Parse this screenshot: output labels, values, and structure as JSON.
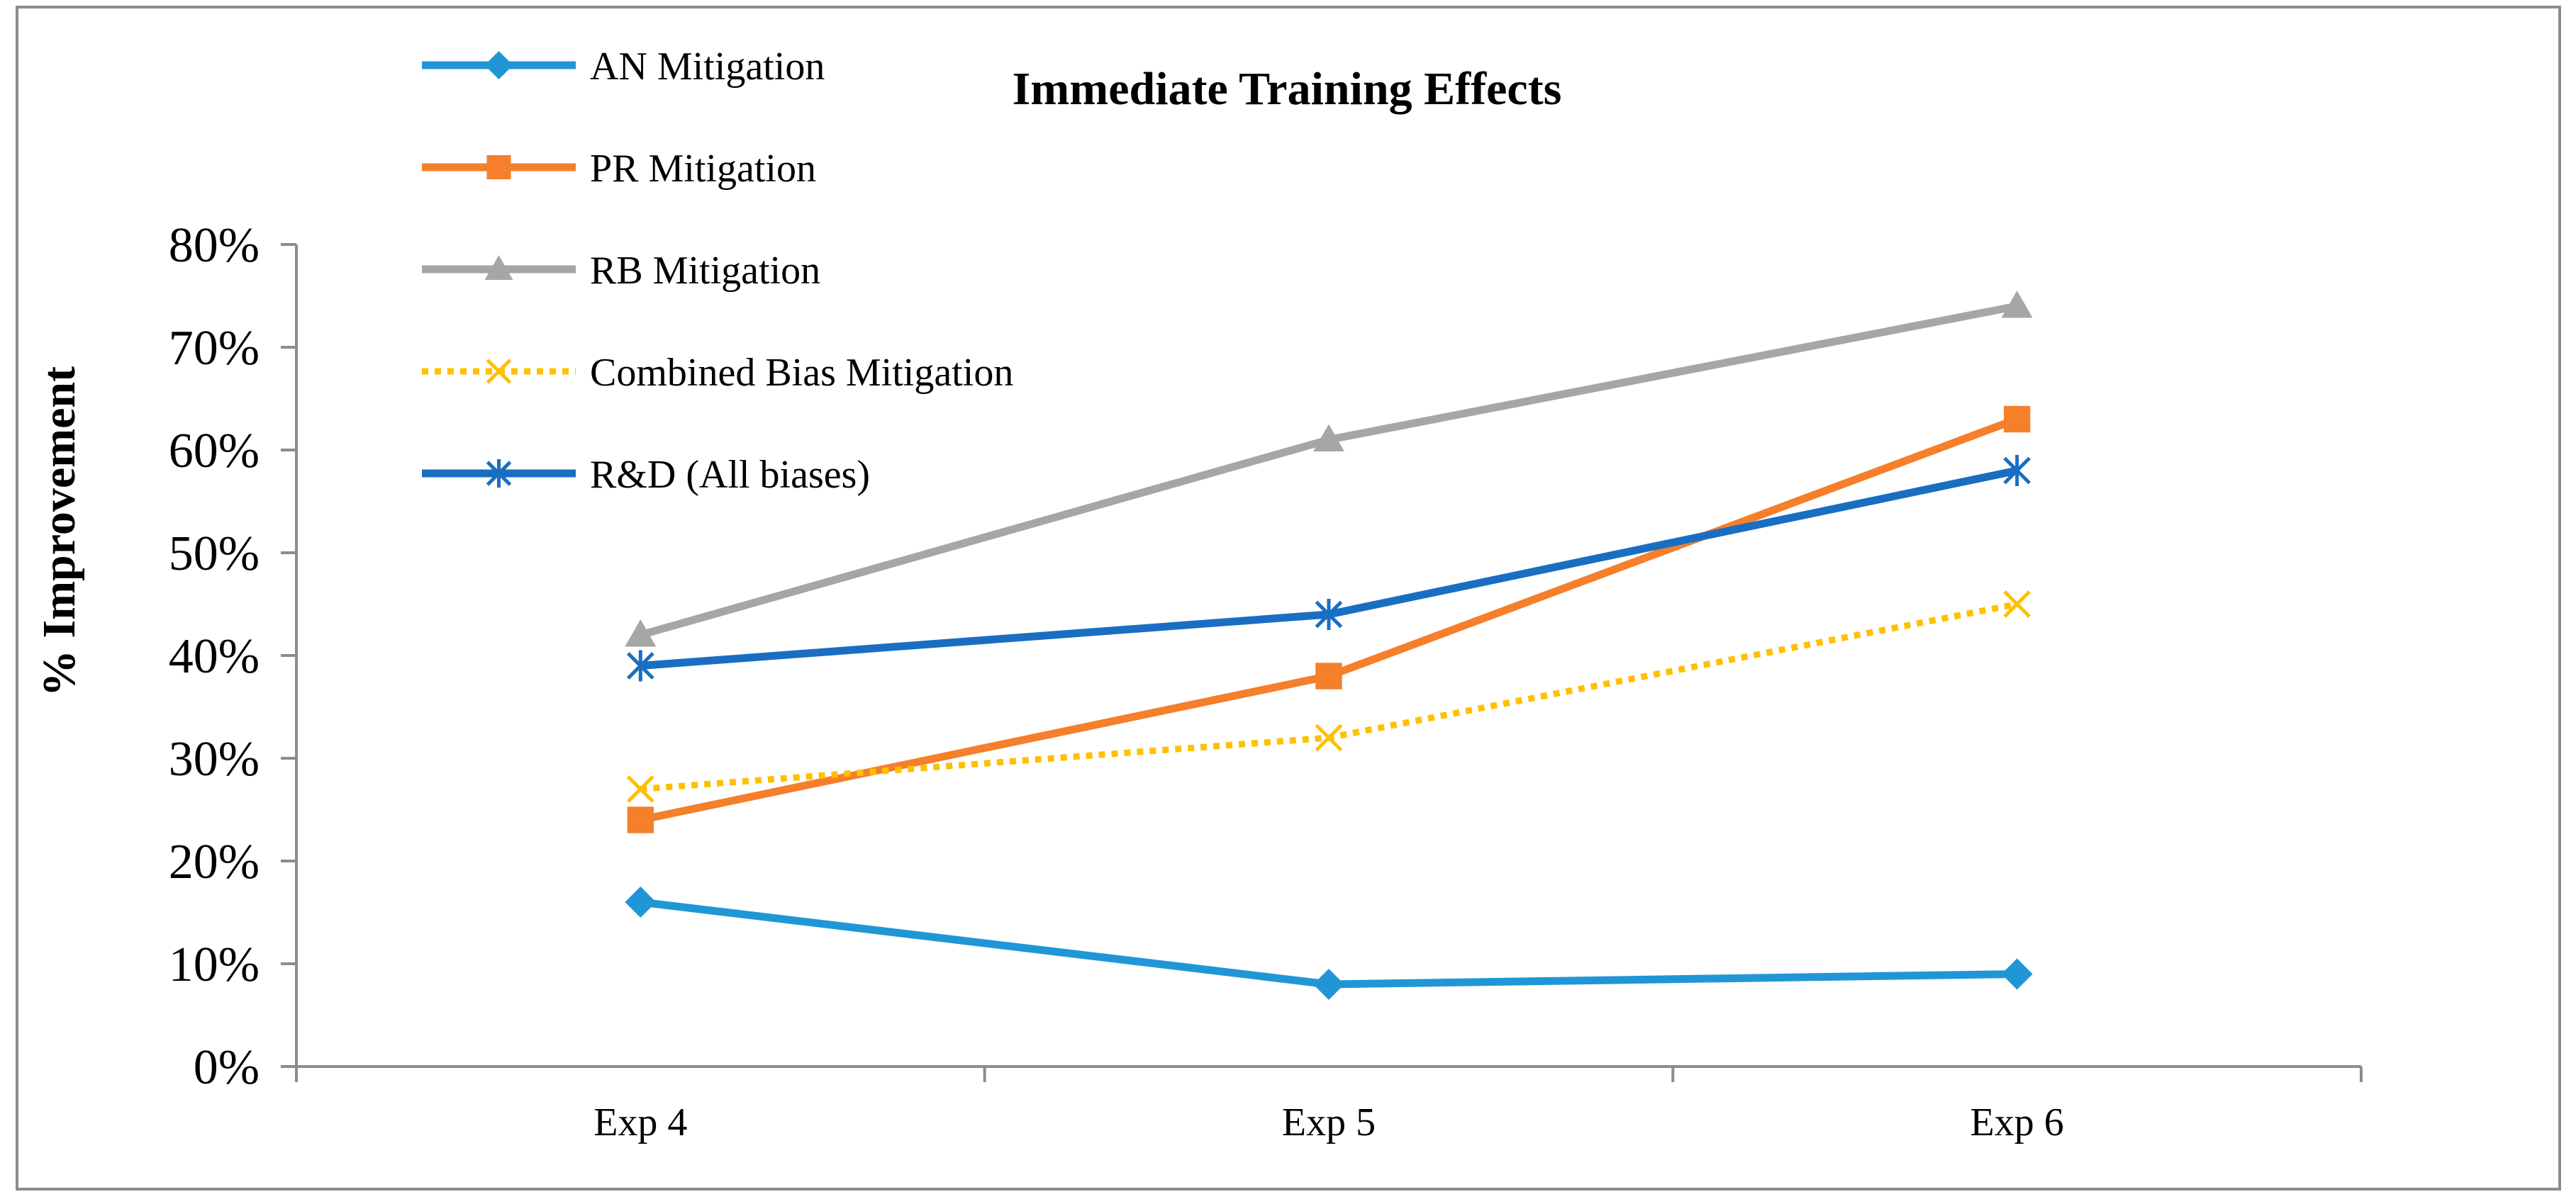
{
  "colors": {
    "border": "#8c8c8c",
    "axis": "#8c8c8c",
    "text": "#000000",
    "series": {
      "an": "#2196d6",
      "pr": "#f57f2a",
      "rb": "#a6a6a6",
      "combined": "#ffc000",
      "rd": "#1a6ec2"
    }
  },
  "chart_data": {
    "type": "line",
    "title": "Immediate Training Effects",
    "xlabel": "",
    "ylabel": "% Improvement",
    "categories": [
      "Exp 4",
      "Exp 5",
      "Exp 6"
    ],
    "ylim": [
      0,
      80
    ],
    "yticks": [
      0,
      10,
      20,
      30,
      40,
      50,
      60,
      70,
      80
    ],
    "ytick_labels": [
      "0%",
      "10%",
      "20%",
      "30%",
      "40%",
      "50%",
      "60%",
      "70%",
      "80%"
    ],
    "grid": false,
    "legend_position": "top-left",
    "series": [
      {
        "key": "an",
        "name": "AN Mitigation",
        "values": [
          16,
          8,
          9
        ],
        "marker": "diamond",
        "dash": "solid"
      },
      {
        "key": "pr",
        "name": "PR Mitigation",
        "values": [
          24,
          38,
          63
        ],
        "marker": "square",
        "dash": "solid"
      },
      {
        "key": "rb",
        "name": "RB Mitigation",
        "values": [
          42,
          61,
          74
        ],
        "marker": "triangle",
        "dash": "solid"
      },
      {
        "key": "combined",
        "name": "Combined Bias Mitigation",
        "values": [
          27,
          32,
          45
        ],
        "marker": "x",
        "dash": "dotted"
      },
      {
        "key": "rd",
        "name": "R&D (All biases)",
        "values": [
          39,
          44,
          58
        ],
        "marker": "asterisk",
        "dash": "solid"
      }
    ]
  }
}
